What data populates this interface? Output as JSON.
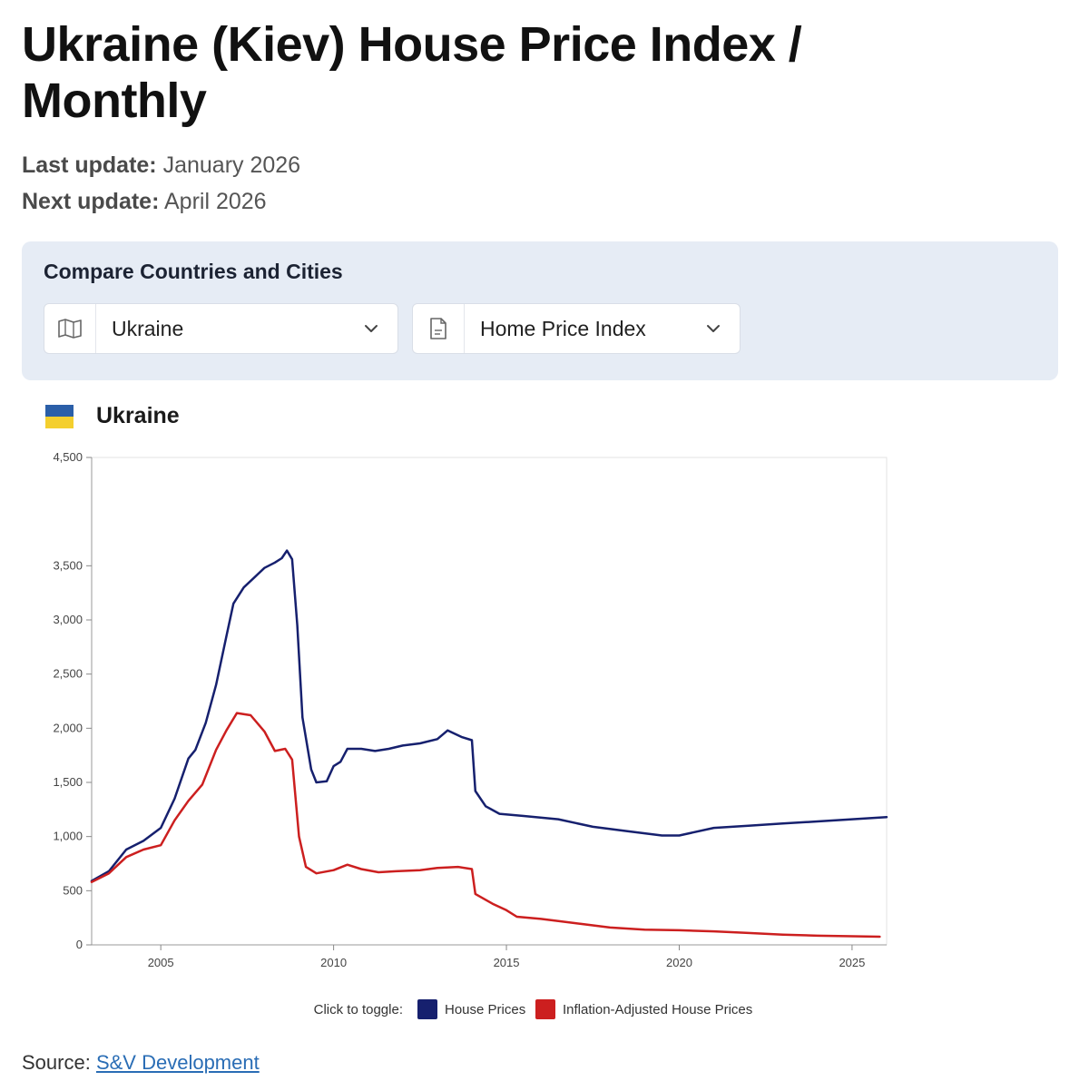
{
  "page": {
    "title": "Ukraine (Kiev) House Price Index / Monthly",
    "last_update_label": "Last update:",
    "last_update_value": "January 2026",
    "next_update_label": "Next update:",
    "next_update_value": "April 2026"
  },
  "compare": {
    "title": "Compare Countries and Cities",
    "country_select": {
      "value": "Ukraine",
      "icon": "map-icon"
    },
    "indicator_select": {
      "value": "Home Price Index",
      "icon": "document-icon"
    }
  },
  "chart_header": {
    "country": "Ukraine",
    "flag_colors": [
      "#2b5fa8",
      "#f4cf2e"
    ]
  },
  "legend": {
    "prefix": "Click to toggle:"
  },
  "source": {
    "label": "Source:",
    "link_text": "S&V Development"
  },
  "chart_data": {
    "type": "line",
    "xlim": [
      2003.0,
      2026.0
    ],
    "ylim": [
      0,
      4500
    ],
    "x_ticks": [
      2005,
      2010,
      2015,
      2020,
      2025
    ],
    "y_ticks": [
      0,
      500,
      1000,
      1500,
      2000,
      2500,
      3000,
      3500,
      4500
    ],
    "y_tick_labels": [
      "0",
      "500",
      "1,000",
      "1,500",
      "2,000",
      "2,500",
      "3,000",
      "3,500",
      "4,500"
    ],
    "grid": false,
    "legend_position": "bottom-center",
    "series": [
      {
        "name": "House Prices",
        "color": "#16206e",
        "points": [
          [
            2003.0,
            590
          ],
          [
            2003.5,
            680
          ],
          [
            2004.0,
            880
          ],
          [
            2004.5,
            960
          ],
          [
            2005.0,
            1080
          ],
          [
            2005.4,
            1350
          ],
          [
            2005.8,
            1720
          ],
          [
            2006.0,
            1800
          ],
          [
            2006.3,
            2050
          ],
          [
            2006.6,
            2400
          ],
          [
            2006.9,
            2850
          ],
          [
            2007.1,
            3150
          ],
          [
            2007.4,
            3300
          ],
          [
            2007.8,
            3420
          ],
          [
            2008.0,
            3480
          ],
          [
            2008.3,
            3530
          ],
          [
            2008.5,
            3570
          ],
          [
            2008.65,
            3640
          ],
          [
            2008.8,
            3560
          ],
          [
            2008.95,
            2950
          ],
          [
            2009.1,
            2100
          ],
          [
            2009.35,
            1620
          ],
          [
            2009.5,
            1500
          ],
          [
            2009.8,
            1510
          ],
          [
            2010.0,
            1650
          ],
          [
            2010.2,
            1690
          ],
          [
            2010.4,
            1810
          ],
          [
            2010.8,
            1810
          ],
          [
            2011.2,
            1790
          ],
          [
            2011.6,
            1810
          ],
          [
            2012.0,
            1840
          ],
          [
            2012.5,
            1860
          ],
          [
            2013.0,
            1900
          ],
          [
            2013.3,
            1980
          ],
          [
            2013.7,
            1920
          ],
          [
            2014.0,
            1890
          ],
          [
            2014.1,
            1420
          ],
          [
            2014.4,
            1280
          ],
          [
            2014.8,
            1210
          ],
          [
            2015.5,
            1190
          ],
          [
            2016.5,
            1160
          ],
          [
            2017.5,
            1090
          ],
          [
            2018.5,
            1050
          ],
          [
            2019.5,
            1010
          ],
          [
            2020.0,
            1010
          ],
          [
            2021.0,
            1080
          ],
          [
            2022.0,
            1100
          ],
          [
            2023.0,
            1120
          ],
          [
            2024.0,
            1140
          ],
          [
            2025.0,
            1160
          ],
          [
            2026.0,
            1180
          ]
        ]
      },
      {
        "name": "Inflation-Adjusted House Prices",
        "color": "#cc1f1f",
        "points": [
          [
            2003.0,
            580
          ],
          [
            2003.5,
            660
          ],
          [
            2004.0,
            810
          ],
          [
            2004.5,
            880
          ],
          [
            2005.0,
            920
          ],
          [
            2005.4,
            1150
          ],
          [
            2005.8,
            1330
          ],
          [
            2006.2,
            1480
          ],
          [
            2006.6,
            1800
          ],
          [
            2006.9,
            1980
          ],
          [
            2007.2,
            2140
          ],
          [
            2007.6,
            2120
          ],
          [
            2008.0,
            1970
          ],
          [
            2008.3,
            1790
          ],
          [
            2008.6,
            1810
          ],
          [
            2008.8,
            1710
          ],
          [
            2009.0,
            1000
          ],
          [
            2009.2,
            720
          ],
          [
            2009.5,
            660
          ],
          [
            2010.0,
            690
          ],
          [
            2010.4,
            740
          ],
          [
            2010.8,
            700
          ],
          [
            2011.3,
            670
          ],
          [
            2011.8,
            680
          ],
          [
            2012.5,
            690
          ],
          [
            2013.0,
            710
          ],
          [
            2013.6,
            720
          ],
          [
            2014.0,
            700
          ],
          [
            2014.1,
            470
          ],
          [
            2014.6,
            380
          ],
          [
            2015.0,
            320
          ],
          [
            2015.3,
            260
          ],
          [
            2016.0,
            240
          ],
          [
            2017.0,
            200
          ],
          [
            2018.0,
            160
          ],
          [
            2019.0,
            140
          ],
          [
            2020.0,
            135
          ],
          [
            2021.0,
            125
          ],
          [
            2022.0,
            110
          ],
          [
            2023.0,
            95
          ],
          [
            2024.0,
            85
          ],
          [
            2025.0,
            80
          ],
          [
            2025.8,
            75
          ]
        ]
      }
    ]
  }
}
